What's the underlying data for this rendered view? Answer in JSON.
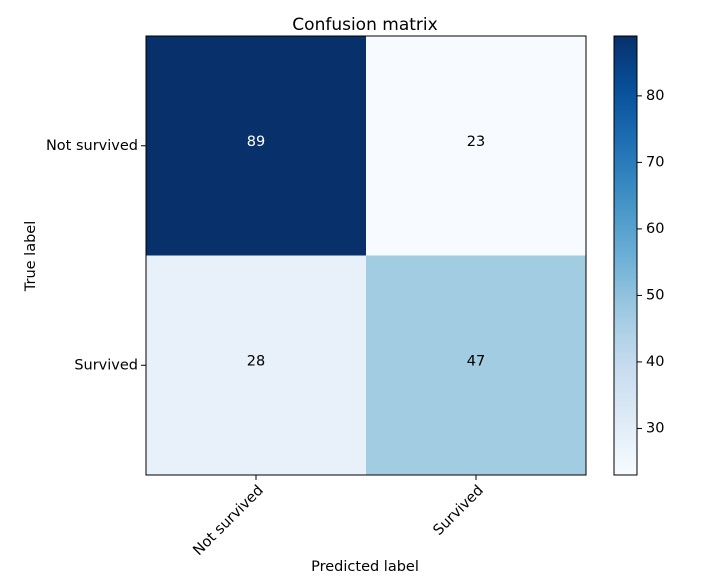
{
  "chart_data": {
    "type": "heatmap",
    "title": "Confusion matrix",
    "xlabel": "Predicted label",
    "ylabel": "True label",
    "row_labels": [
      "Not survived",
      "Survived"
    ],
    "col_labels": [
      "Not survived",
      "Survived"
    ],
    "values": [
      [
        89,
        23
      ],
      [
        28,
        47
      ]
    ],
    "cell_text": [
      [
        "89",
        "23"
      ],
      [
        "28",
        "47"
      ]
    ],
    "colormap": "Blues",
    "colorbar": {
      "range": [
        23,
        89
      ],
      "ticks": [
        "30",
        "40",
        "50",
        "60",
        "70",
        "80"
      ]
    },
    "grid": false,
    "colors": {
      "low": "#f7fbff",
      "high": "#08306b",
      "text_dark": "#000000",
      "text_light": "#ffffff"
    }
  }
}
